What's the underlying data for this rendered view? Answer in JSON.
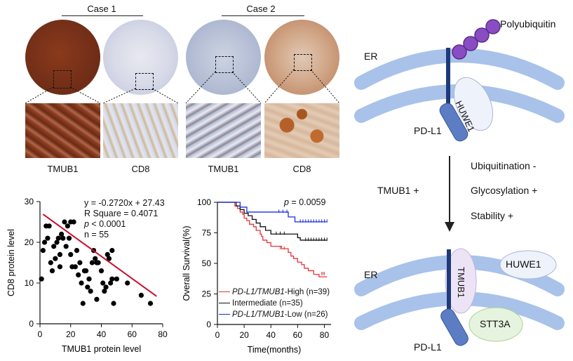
{
  "histology": {
    "case1_label": "Case 1",
    "case2_label": "Case 2",
    "panel_labels": [
      "TMUB1",
      "CD8",
      "TMUB1",
      "CD8"
    ]
  },
  "scatter": {
    "equation": "y = -0.2720x + 27.43",
    "r_square": "R Square = 0.4071",
    "p_prefix": "p",
    "p_value": " < 0.0001",
    "n": "n = 55"
  },
  "survival": {
    "p_prefix": "p",
    "p_value": " = 0.0059",
    "legend": [
      {
        "italic": "PD-L1/TMUB1",
        "rest": "-High  (n=39)",
        "color": "#e8333a"
      },
      {
        "italic": "",
        "rest": "Intermediate (n=35)",
        "color": "#111111"
      },
      {
        "italic": "PD-L1/TMUB1",
        "rest": "-Low (n=26)",
        "color": "#1a2ee0"
      }
    ]
  },
  "diagram": {
    "polyubiquitin": "Polyubiquitin",
    "er_top": "ER",
    "er_bottom": "ER",
    "huwe1_top": "HUWE1",
    "huwe1_bottom": "HUWE1",
    "pdl1_top": "PD-L1",
    "pdl1_bottom": "PD-L1",
    "tmub1_protein": "TMUB1",
    "stt3a": "STT3A",
    "tmub1_plus": "TMUB1 +",
    "effects": [
      "Ubiquitination -",
      "Glycosylation +",
      "Stability +"
    ]
  },
  "chart_data": [
    {
      "type": "scatter",
      "xlabel": "TMUB1 protein level",
      "ylabel": "CD8 protein level",
      "xlim": [
        0,
        80
      ],
      "ylim": [
        0,
        30
      ],
      "xticks": [
        0,
        20,
        40,
        60,
        80
      ],
      "yticks": [
        0,
        10,
        20,
        30
      ],
      "fit": {
        "slope": -0.272,
        "intercept": 27.43,
        "x_range": [
          2,
          76
        ],
        "color": "#c8102e"
      },
      "points": [
        [
          1,
          11
        ],
        [
          2,
          18
        ],
        [
          3,
          20
        ],
        [
          4,
          24
        ],
        [
          5,
          21
        ],
        [
          6,
          24
        ],
        [
          7,
          15
        ],
        [
          8,
          13
        ],
        [
          9,
          19
        ],
        [
          10,
          16
        ],
        [
          11,
          20
        ],
        [
          12,
          21
        ],
        [
          13,
          17
        ],
        [
          13,
          14
        ],
        [
          14,
          22
        ],
        [
          15,
          21
        ],
        [
          16,
          25
        ],
        [
          17,
          19
        ],
        [
          18,
          24
        ],
        [
          19,
          21
        ],
        [
          20,
          25
        ],
        [
          20,
          17
        ],
        [
          21,
          14
        ],
        [
          22,
          25
        ],
        [
          23,
          14
        ],
        [
          24,
          18
        ],
        [
          25,
          12
        ],
        [
          26,
          15
        ],
        [
          27,
          10
        ],
        [
          28,
          5
        ],
        [
          29,
          13
        ],
        [
          30,
          13
        ],
        [
          31,
          9
        ],
        [
          32,
          11
        ],
        [
          33,
          8
        ],
        [
          34,
          15
        ],
        [
          35,
          18
        ],
        [
          36,
          16
        ],
        [
          37,
          15
        ],
        [
          37,
          6
        ],
        [
          38,
          15
        ],
        [
          40,
          13
        ],
        [
          41,
          10
        ],
        [
          42,
          8
        ],
        [
          43,
          9
        ],
        [
          44,
          17
        ],
        [
          45,
          16
        ],
        [
          46,
          10
        ],
        [
          47,
          11
        ],
        [
          47,
          18
        ],
        [
          48,
          5
        ],
        [
          50,
          11
        ],
        [
          57,
          10
        ],
        [
          66,
          7
        ],
        [
          72,
          5
        ]
      ]
    },
    {
      "type": "line",
      "subtype": "kaplan-meier",
      "xlabel": "Time(months)",
      "ylabel": "Overall Survival(%)",
      "xlim": [
        0,
        85
      ],
      "ylim": [
        0,
        100
      ],
      "xticks": [
        0,
        20,
        40,
        60,
        80
      ],
      "yticks": [
        0,
        25,
        50,
        75,
        100
      ],
      "series": [
        {
          "name": "PD-L1/TMUB1-High (n=39)",
          "color": "#e8333a",
          "steps": [
            [
              0,
              100
            ],
            [
              11,
              100
            ],
            [
              13,
              97
            ],
            [
              15,
              95
            ],
            [
              17,
              92
            ],
            [
              19,
              90
            ],
            [
              20,
              87
            ],
            [
              22,
              85
            ],
            [
              24,
              82
            ],
            [
              27,
              80
            ],
            [
              29,
              77
            ],
            [
              32,
              74
            ],
            [
              33,
              72
            ],
            [
              34,
              69
            ],
            [
              37,
              67
            ],
            [
              40,
              64
            ],
            [
              48,
              62
            ],
            [
              53,
              59
            ],
            [
              55,
              56
            ],
            [
              57,
              54
            ],
            [
              60,
              51
            ],
            [
              63,
              49
            ],
            [
              65,
              46
            ],
            [
              68,
              44
            ],
            [
              72,
              41
            ],
            [
              76,
              39
            ],
            [
              82,
              39
            ]
          ],
          "censors": [
            [
              47,
              62
            ],
            [
              50,
              62
            ],
            [
              78,
              41
            ],
            [
              79,
              41
            ],
            [
              80,
              41
            ]
          ]
        },
        {
          "name": "Intermediate (n=35)",
          "color": "#111111",
          "steps": [
            [
              0,
              100
            ],
            [
              12,
              100
            ],
            [
              14,
              97
            ],
            [
              17,
              94
            ],
            [
              20,
              91
            ],
            [
              23,
              89
            ],
            [
              26,
              86
            ],
            [
              29,
              83
            ],
            [
              32,
              80
            ],
            [
              36,
              77
            ],
            [
              40,
              74
            ],
            [
              56,
              74
            ],
            [
              60,
              71
            ],
            [
              62,
              69
            ],
            [
              82,
              69
            ]
          ],
          "censors": [
            [
              44,
              74
            ],
            [
              47,
              74
            ],
            [
              50,
              74
            ],
            [
              66,
              69
            ],
            [
              68,
              69
            ],
            [
              70,
              69
            ],
            [
              72,
              69
            ],
            [
              74,
              69
            ],
            [
              76,
              69
            ],
            [
              78,
              69
            ],
            [
              80,
              69
            ],
            [
              82,
              69
            ]
          ]
        },
        {
          "name": "PD-L1/TMUB1-Low (n=26)",
          "color": "#1a2ee0",
          "steps": [
            [
              0,
              100
            ],
            [
              15,
              100
            ],
            [
              17,
              96
            ],
            [
              21,
              96
            ],
            [
              22,
              92
            ],
            [
              40,
              92
            ],
            [
              53,
              88
            ],
            [
              58,
              84
            ],
            [
              82,
              84
            ]
          ],
          "censors": [
            [
              46,
              92
            ],
            [
              49,
              92
            ],
            [
              52,
              92
            ],
            [
              62,
              84
            ],
            [
              64,
              84
            ],
            [
              66,
              84
            ],
            [
              68,
              84
            ],
            [
              70,
              84
            ],
            [
              72,
              84
            ],
            [
              74,
              84
            ],
            [
              76,
              84
            ],
            [
              78,
              84
            ],
            [
              80,
              84
            ],
            [
              82,
              84
            ]
          ]
        }
      ]
    }
  ]
}
